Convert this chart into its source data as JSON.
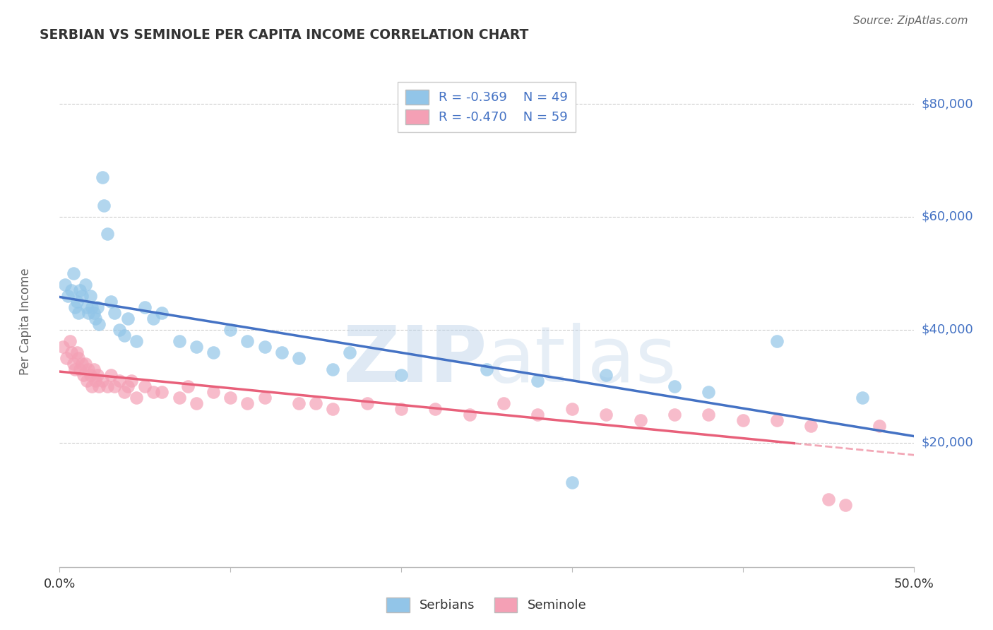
{
  "title": "SERBIAN VS SEMINOLE PER CAPITA INCOME CORRELATION CHART",
  "source": "Source: ZipAtlas.com",
  "ylabel": "Per Capita Income",
  "watermark_zip": "ZIP",
  "watermark_atlas": "atlas",
  "legend_serbian": "Serbians",
  "legend_seminole": "Seminole",
  "R_serbian": -0.369,
  "N_serbian": 49,
  "R_seminole": -0.47,
  "N_seminole": 59,
  "xlim": [
    0.0,
    0.5
  ],
  "ylim": [
    0,
    85000
  ],
  "plot_ylim": [
    -2000,
    85000
  ],
  "yticks": [
    0,
    20000,
    40000,
    60000,
    80000
  ],
  "ytick_labels": [
    "",
    "$20,000",
    "$40,000",
    "$60,000",
    "$80,000"
  ],
  "xticks": [
    0.0,
    0.1,
    0.2,
    0.3,
    0.4,
    0.5
  ],
  "xtick_labels_show": [
    "0.0%",
    "",
    "",
    "",
    "",
    "50.0%"
  ],
  "color_serbian": "#92C5E8",
  "color_seminole": "#F4A0B5",
  "color_serbian_line": "#4472C4",
  "color_seminole_line": "#E8607A",
  "color_axis_right": "#4472C4",
  "color_title": "#333333",
  "color_source": "#666666",
  "color_ylabel": "#666666",
  "color_xtick": "#333333",
  "background": "#FFFFFF",
  "serbian_x": [
    0.003,
    0.005,
    0.007,
    0.008,
    0.009,
    0.01,
    0.011,
    0.012,
    0.013,
    0.015,
    0.016,
    0.017,
    0.018,
    0.019,
    0.02,
    0.021,
    0.022,
    0.023,
    0.025,
    0.026,
    0.028,
    0.03,
    0.032,
    0.035,
    0.038,
    0.04,
    0.045,
    0.05,
    0.055,
    0.06,
    0.07,
    0.08,
    0.09,
    0.1,
    0.11,
    0.12,
    0.13,
    0.14,
    0.16,
    0.17,
    0.2,
    0.25,
    0.28,
    0.3,
    0.32,
    0.36,
    0.38,
    0.42,
    0.47
  ],
  "serbian_y": [
    48000,
    46000,
    47000,
    50000,
    44000,
    45000,
    43000,
    47000,
    46000,
    48000,
    44000,
    43000,
    46000,
    44000,
    43000,
    42000,
    44000,
    41000,
    67000,
    62000,
    57000,
    45000,
    43000,
    40000,
    39000,
    42000,
    38000,
    44000,
    42000,
    43000,
    38000,
    37000,
    36000,
    40000,
    38000,
    37000,
    36000,
    35000,
    33000,
    36000,
    32000,
    33000,
    31000,
    13000,
    32000,
    30000,
    29000,
    38000,
    28000
  ],
  "seminole_x": [
    0.002,
    0.004,
    0.006,
    0.007,
    0.008,
    0.009,
    0.01,
    0.011,
    0.012,
    0.013,
    0.014,
    0.015,
    0.016,
    0.017,
    0.018,
    0.019,
    0.02,
    0.021,
    0.022,
    0.023,
    0.025,
    0.028,
    0.03,
    0.032,
    0.035,
    0.038,
    0.04,
    0.042,
    0.045,
    0.05,
    0.055,
    0.06,
    0.07,
    0.075,
    0.08,
    0.09,
    0.1,
    0.11,
    0.12,
    0.14,
    0.15,
    0.16,
    0.18,
    0.2,
    0.22,
    0.24,
    0.26,
    0.28,
    0.3,
    0.32,
    0.34,
    0.36,
    0.38,
    0.4,
    0.42,
    0.44,
    0.45,
    0.46,
    0.48
  ],
  "seminole_y": [
    37000,
    35000,
    38000,
    36000,
    34000,
    33000,
    36000,
    35000,
    33000,
    34000,
    32000,
    34000,
    31000,
    33000,
    32000,
    30000,
    33000,
    31000,
    32000,
    30000,
    31000,
    30000,
    32000,
    30000,
    31000,
    29000,
    30000,
    31000,
    28000,
    30000,
    29000,
    29000,
    28000,
    30000,
    27000,
    29000,
    28000,
    27000,
    28000,
    27000,
    27000,
    26000,
    27000,
    26000,
    26000,
    25000,
    27000,
    25000,
    26000,
    25000,
    24000,
    25000,
    25000,
    24000,
    24000,
    23000,
    10000,
    9000,
    23000
  ]
}
